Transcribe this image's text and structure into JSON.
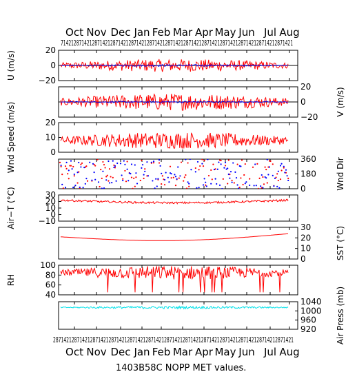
{
  "title": "1403B58C NOPP MET values.",
  "colors": {
    "main": "#ff0000",
    "secondary": "#0000ff",
    "pressure": "#00e0e8",
    "axis": "#000000"
  },
  "months": [
    "Oct",
    "Nov",
    "Dec",
    "Jan",
    "Feb",
    "Mar",
    "Apr",
    "May",
    "Jun",
    "Jul",
    "Aug"
  ],
  "top_day_ticks": "71421287142128714212871421287142128714212871421287142128714212871421287142128714212871421",
  "bottom_day_ticks": "2871421287142128714212871421287142128714212871421287142128714212871421287142128714212871421",
  "chart_data": [
    {
      "type": "line",
      "ylabel": "U (m/s)",
      "label_side": "left",
      "ylim": [
        -20,
        20
      ],
      "ticks": [
        "20",
        "0",
        "−20"
      ],
      "zero_line": true,
      "series": [
        {
          "color": "#ff0000",
          "mean": 0,
          "amp": 6
        },
        {
          "color": "#0000ff",
          "mean": 0,
          "amp": 1
        }
      ]
    },
    {
      "type": "line",
      "ylabel": "V (m/s)",
      "label_side": "right",
      "ylim": [
        -20,
        20
      ],
      "ticks": [
        "20",
        "0",
        "−20"
      ],
      "zero_line": true,
      "series": [
        {
          "color": "#ff0000",
          "mean": 0,
          "amp": 8
        },
        {
          "color": "#0000ff",
          "mean": 0,
          "amp": 1
        }
      ]
    },
    {
      "type": "line",
      "ylabel": "Wnd Speed (m/s)",
      "label_side": "left",
      "ylim": [
        0,
        20
      ],
      "ticks": [
        "20",
        "10",
        "0"
      ],
      "zero_line": false,
      "series": [
        {
          "color": "#ff0000",
          "mean": 8,
          "amp": 4
        }
      ]
    },
    {
      "type": "scatter",
      "ylabel": "Wnd Dir",
      "label_side": "right",
      "ylim": [
        0,
        360
      ],
      "ticks": [
        "360",
        "180",
        "0"
      ],
      "zero_line": false,
      "series": [
        {
          "color": "#ff0000"
        },
        {
          "color": "#0000ff"
        }
      ]
    },
    {
      "type": "line",
      "ylabel": "Air−T (°C)",
      "label_side": "left",
      "ylim": [
        -10,
        30
      ],
      "ticks": [
        "30",
        "20",
        "10",
        "0",
        "−10"
      ],
      "zero_line": false,
      "series": [
        {
          "color": "#ff0000",
          "mean": 20,
          "amp": 1.5
        }
      ]
    },
    {
      "type": "line",
      "ylabel": "SST (°C)",
      "label_side": "right",
      "ylim": [
        0,
        30
      ],
      "ticks": [
        "30",
        "20",
        "10",
        "0"
      ],
      "zero_line": false,
      "series": [
        {
          "color": "#ff0000",
          "mean": 18,
          "amp": 0.3
        }
      ]
    },
    {
      "type": "line",
      "ylabel": "RH",
      "label_side": "left",
      "ylim": [
        40,
        100
      ],
      "ticks": [
        "100",
        "80",
        "60",
        "40"
      ],
      "zero_line": false,
      "series": [
        {
          "color": "#ff0000",
          "mean": 85,
          "amp": 10
        }
      ]
    },
    {
      "type": "line",
      "ylabel": "Air Press (mb)",
      "label_side": "right",
      "ylim": [
        920,
        1040
      ],
      "ticks": [
        "1040",
        "1000",
        "960",
        "920"
      ],
      "zero_line": false,
      "series": [
        {
          "color": "#00e0e8",
          "mean": 1015,
          "amp": 4
        }
      ]
    }
  ]
}
